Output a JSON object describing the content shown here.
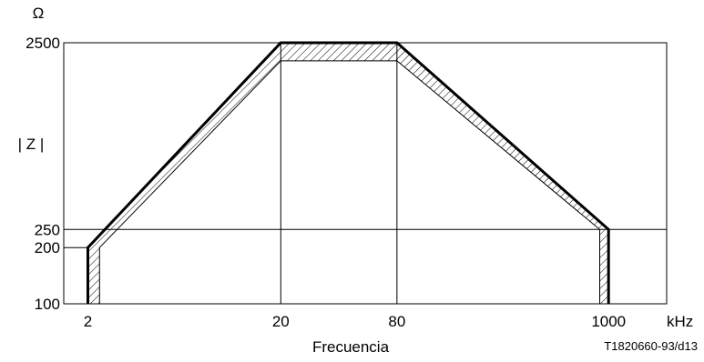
{
  "chart_data": {
    "type": "line",
    "x_scale": "log",
    "y_scale": "log",
    "xlim": [
      1.5,
      2000
    ],
    "ylim": [
      100,
      2500
    ],
    "x_ticks": [
      {
        "value": 2,
        "label": "2"
      },
      {
        "value": 20,
        "label": "20"
      },
      {
        "value": 80,
        "label": "80"
      },
      {
        "value": 1000,
        "label": "1000"
      }
    ],
    "y_ticks": [
      {
        "value": 100,
        "label": "100"
      },
      {
        "value": 200,
        "label": "200"
      },
      {
        "value": 250,
        "label": "250"
      },
      {
        "value": 2500,
        "label": "2500"
      }
    ],
    "x_unit": "kHz",
    "y_unit": "Ω",
    "xlabel": "Frecuencia",
    "ylabel": "| Z |",
    "figure_code": "T1820660-93/d13",
    "grid_x": [
      20,
      80
    ],
    "grid_y": [
      200,
      250
    ],
    "upper_limit": {
      "x": [
        2,
        2,
        20,
        80,
        1000,
        1000
      ],
      "y": [
        100,
        200,
        2500,
        2500,
        250,
        100
      ]
    },
    "lower_limit": {
      "x": [
        2.3,
        2.3,
        20,
        80,
        900,
        900
      ],
      "y": [
        100,
        200,
        2000,
        2000,
        250,
        100
      ]
    },
    "hatched_region": "between upper and lower limits"
  }
}
